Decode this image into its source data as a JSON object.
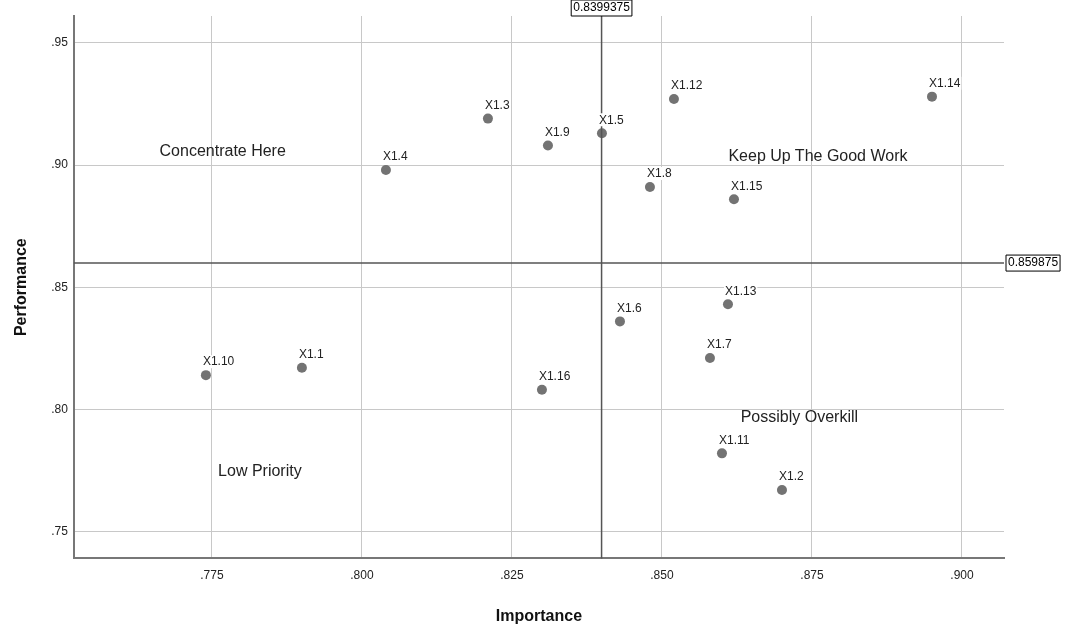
{
  "chart_data": {
    "type": "scatter",
    "xlabel": "Importance",
    "ylabel": "Performance",
    "x": [
      0.79,
      0.87,
      0.821,
      0.804,
      0.84,
      0.843,
      0.858,
      0.848,
      0.831,
      0.774,
      0.86,
      0.852,
      0.861,
      0.895,
      0.862,
      0.83
    ],
    "series": [
      {
        "color": "#737373",
        "values": [
          0.817,
          0.767,
          0.919,
          0.898,
          0.913,
          0.836,
          0.821,
          0.891,
          0.908,
          0.814,
          0.782,
          0.927,
          0.843,
          0.928,
          0.886,
          0.808
        ]
      }
    ],
    "xlim": [
      0.752,
      0.907
    ],
    "ylim": [
      0.739,
      0.961
    ],
    "xticks": [
      {
        "value": 0.775,
        "label": ".775"
      },
      {
        "value": 0.8,
        "label": ".800"
      },
      {
        "value": 0.825,
        "label": ".825"
      },
      {
        "value": 0.85,
        "label": ".850"
      },
      {
        "value": 0.875,
        "label": ".875"
      },
      {
        "value": 0.9,
        "label": ".900"
      }
    ],
    "yticks": [
      {
        "value": 0.75,
        "label": ".75"
      },
      {
        "value": 0.8,
        "label": ".80"
      },
      {
        "value": 0.85,
        "label": ".85"
      },
      {
        "value": 0.9,
        "label": ".90"
      },
      {
        "value": 0.95,
        "label": ".95"
      }
    ],
    "grid": true,
    "legend": false,
    "marker": "circle",
    "ref_lines": [
      {
        "axis": "x",
        "value": 0.8399375,
        "label": "0.8399375",
        "color": "#555555"
      },
      {
        "axis": "y",
        "value": 0.859875,
        "label": "0.859875",
        "color": "#555555"
      }
    ],
    "annotations": [
      {
        "text": "X1.1",
        "x": 0.79,
        "y": 0.817
      },
      {
        "text": "X1.2",
        "x": 0.87,
        "y": 0.767
      },
      {
        "text": "X1.3",
        "x": 0.821,
        "y": 0.919
      },
      {
        "text": "X1.4",
        "x": 0.804,
        "y": 0.898
      },
      {
        "text": "X1.5",
        "x": 0.84,
        "y": 0.913
      },
      {
        "text": "X1.6",
        "x": 0.843,
        "y": 0.836
      },
      {
        "text": "X1.7",
        "x": 0.858,
        "y": 0.821
      },
      {
        "text": "X1.8",
        "x": 0.848,
        "y": 0.891
      },
      {
        "text": "X1.9",
        "x": 0.831,
        "y": 0.908
      },
      {
        "text": "X1.10",
        "x": 0.774,
        "y": 0.814
      },
      {
        "text": "X1.11",
        "x": 0.86,
        "y": 0.782
      },
      {
        "text": "X1.12",
        "x": 0.852,
        "y": 0.927
      },
      {
        "text": "X1.13",
        "x": 0.861,
        "y": 0.843
      },
      {
        "text": "X1.14",
        "x": 0.895,
        "y": 0.928
      },
      {
        "text": "X1.15",
        "x": 0.862,
        "y": 0.886
      },
      {
        "text": "X1.16",
        "x": 0.83,
        "y": 0.808
      },
      "Concentrate Here",
      "Keep Up The Good Work",
      "Low Priority",
      "Possibly Overkill"
    ]
  }
}
